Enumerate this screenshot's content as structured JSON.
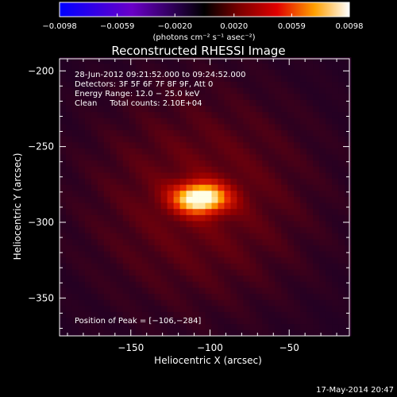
{
  "chart_data": {
    "type": "heatmap",
    "title": "Reconstructed RHESSI Image",
    "xlabel": "Heliocentric X (arcsec)",
    "ylabel": "Heliocentric Y (arcsec)",
    "xlim": [
      -195,
      -12
    ],
    "ylim": [
      -375,
      -192
    ],
    "x_ticks": [
      -150,
      -100,
      -50
    ],
    "x_tick_labels": [
      "−150",
      "−100",
      "−50"
    ],
    "y_ticks": [
      -200,
      -250,
      -300,
      -350
    ],
    "y_tick_labels": [
      "−200",
      "−250",
      "−300",
      "−350"
    ],
    "colorbar": {
      "range": [
        -0.0098,
        0.0098
      ],
      "ticks": [
        -0.0098,
        -0.0059,
        -0.002,
        0.002,
        0.0059,
        0.0098
      ],
      "tick_labels": [
        "−0.0098",
        "−0.0059",
        "−0.0020",
        "0.0020",
        "0.0059",
        "0.0098"
      ],
      "units": "(photons cm⁻² s⁻¹ asec⁻²)"
    },
    "peak": {
      "x": -106,
      "y": -284,
      "value": 0.0098
    },
    "source_sigma": {
      "x": 12,
      "y": 7
    },
    "annotations": [
      "28-Jun-2012 09:21:52.000 to 09:24:52.000",
      "Detectors: 3F 5F 6F 7F 8F 9F, Att 0",
      "Energy Range: 12.0 − 25.0 keV",
      "Clean     Total counts: 2.10E+04"
    ],
    "peak_label": "Position of Peak = [−106,−284]"
  },
  "footer": {
    "date": "17-May-2014 20:47"
  }
}
